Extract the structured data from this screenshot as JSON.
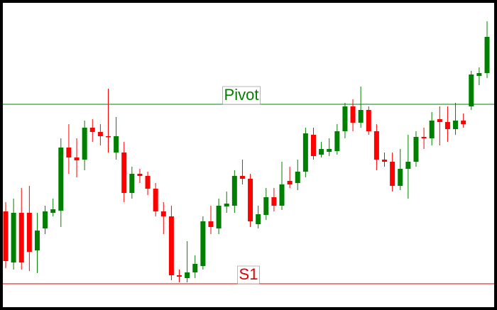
{
  "chart_data": {
    "type": "candlestick",
    "up_color": "#008000",
    "down_color": "#ff0000",
    "ylim": [
      0,
      432
    ],
    "open": [
      134,
      62,
      132,
      132,
      79,
      110,
      132,
      135,
      224,
      210,
      207,
      252,
      246,
      240,
      217,
      217,
      160,
      187,
      184,
      166,
      134,
      127,
      44,
      40,
      48,
      57,
      120,
      110,
      141,
      142,
      184,
      180,
      116,
      129,
      154,
      142,
      177,
      174,
      190,
      242,
      214,
      218,
      219,
      247,
      282,
      259,
      277,
      247,
      207,
      204,
      170,
      194,
      204,
      239,
      237,
      264,
      260,
      250,
      262,
      282,
      325,
      329
    ],
    "high": [
      147,
      152,
      167,
      170,
      132,
      142,
      152,
      237,
      257,
      237,
      262,
      264,
      257,
      307,
      267,
      232,
      197,
      194,
      190,
      174,
      147,
      142,
      52,
      92,
      72,
      127,
      142,
      152,
      162,
      192,
      207,
      187,
      142,
      167,
      167,
      204,
      197,
      207,
      252,
      252,
      232,
      237,
      257,
      287,
      292,
      310,
      282,
      257,
      217,
      217,
      222,
      242,
      247,
      252,
      274,
      282,
      282,
      287,
      272,
      332,
      337,
      402
    ],
    "low": [
      54,
      52,
      52,
      50,
      47,
      102,
      127,
      112,
      187,
      182,
      192,
      232,
      227,
      217,
      207,
      147,
      152,
      174,
      157,
      127,
      102,
      37,
      34,
      34,
      40,
      52,
      102,
      102,
      132,
      132,
      172,
      112,
      110,
      122,
      134,
      136,
      167,
      164,
      182,
      207,
      210,
      212,
      214,
      237,
      247,
      252,
      242,
      192,
      197,
      162,
      164,
      152,
      197,
      222,
      227,
      227,
      232,
      242,
      252,
      277,
      312,
      322
    ],
    "close": [
      64,
      132,
      62,
      77,
      107,
      134,
      137,
      224,
      210,
      206,
      252,
      246,
      240,
      239,
      240,
      160,
      187,
      184,
      166,
      134,
      127,
      44,
      42,
      48,
      60,
      120,
      112,
      142,
      145,
      184,
      180,
      120,
      130,
      154,
      142,
      172,
      172,
      190,
      244,
      212,
      222,
      222,
      247,
      282,
      259,
      277,
      247,
      207,
      204,
      170,
      194,
      204,
      239,
      237,
      262,
      260,
      250,
      262,
      257,
      327,
      329,
      380
    ],
    "levels": [
      {
        "name": "Pivot",
        "value": 285,
        "color": "#008000"
      },
      {
        "name": "S1",
        "value": 32,
        "color": "#e00000"
      }
    ]
  }
}
